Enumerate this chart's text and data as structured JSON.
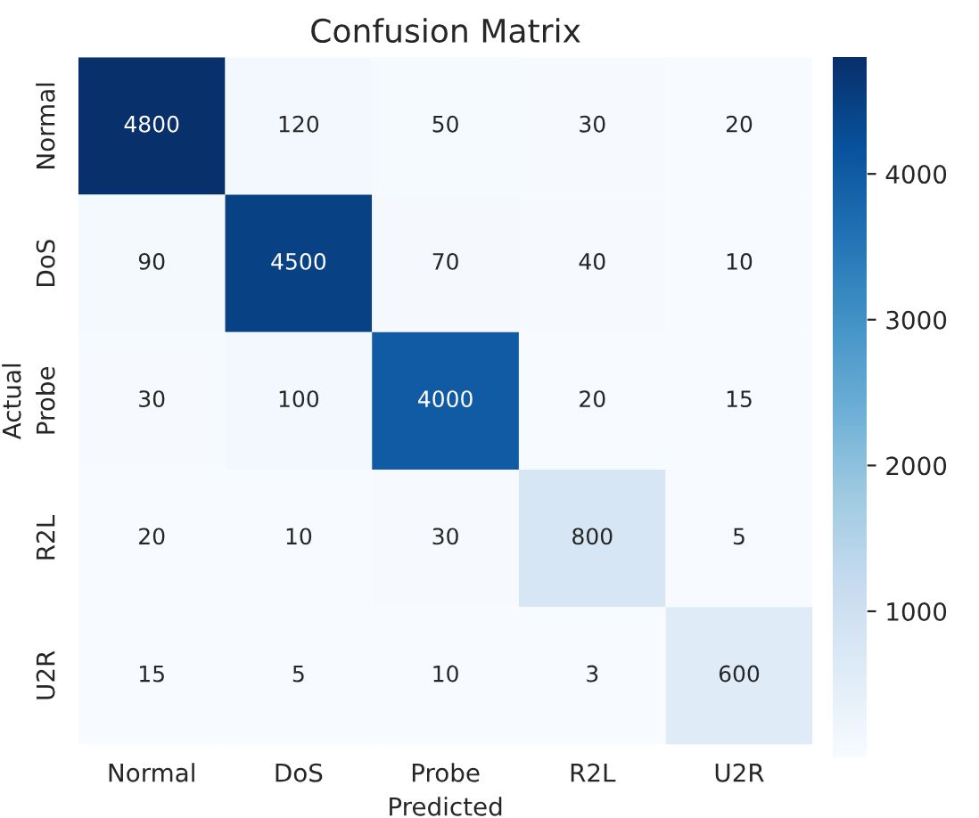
{
  "chart_data": {
    "type": "heatmap",
    "title": "Confusion Matrix",
    "xlabel": "Predicted",
    "ylabel": "Actual",
    "categories": [
      "Normal",
      "DoS",
      "Probe",
      "R2L",
      "U2R"
    ],
    "y_categories": [
      "Normal",
      "DoS",
      "Probe",
      "R2L",
      "U2R"
    ],
    "cells": [
      [
        4800,
        120,
        50,
        30,
        20
      ],
      [
        90,
        4500,
        70,
        40,
        10
      ],
      [
        30,
        100,
        4000,
        20,
        15
      ],
      [
        20,
        10,
        30,
        800,
        5
      ],
      [
        15,
        5,
        10,
        3,
        600
      ]
    ],
    "clim": [
      3,
      4800
    ],
    "cticks": [
      1000,
      2000,
      3000,
      4000
    ],
    "data_labels": true
  }
}
